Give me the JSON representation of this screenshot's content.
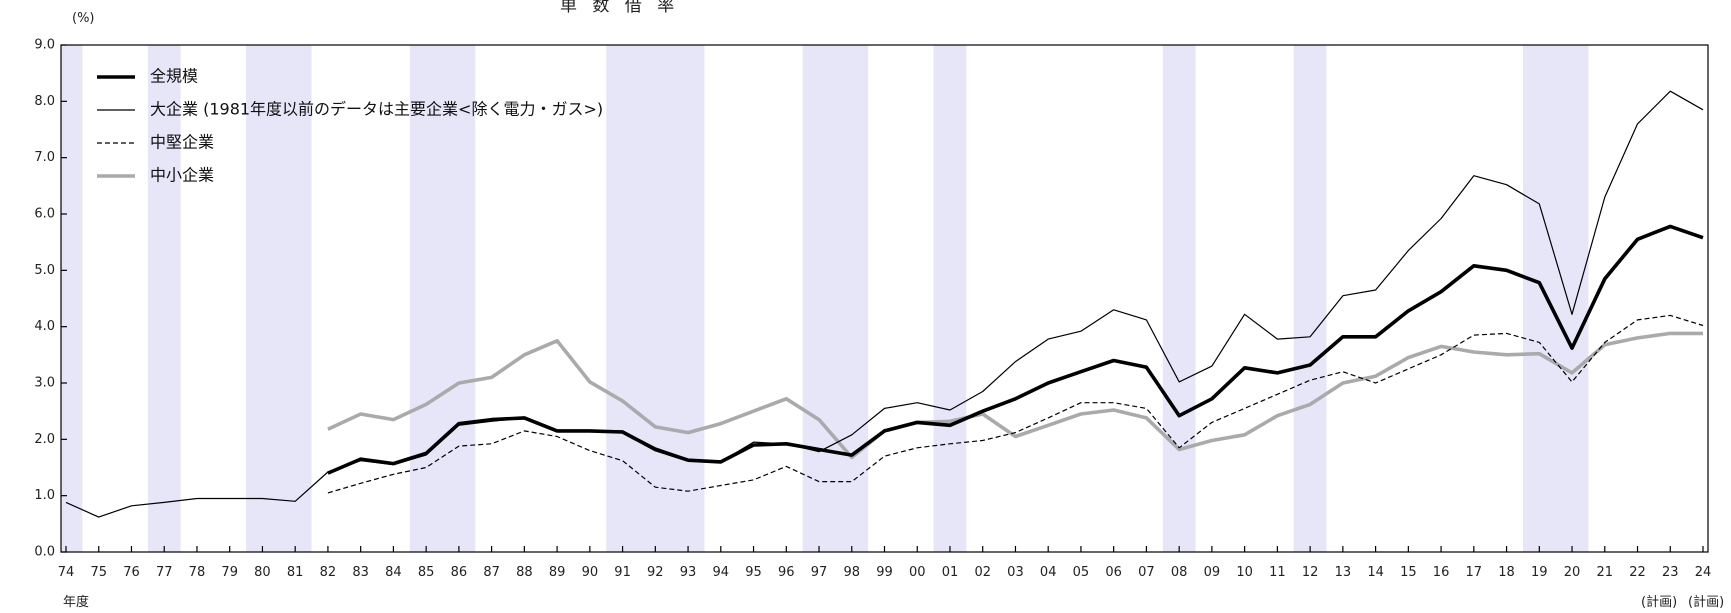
{
  "chart_data": {
    "type": "line",
    "title": "単 数 借 率",
    "unit": "(%)",
    "xlabel": "年度",
    "ylim": [
      0,
      9
    ],
    "yticks": [
      "0.0",
      "1.0",
      "2.0",
      "3.0",
      "4.0",
      "5.0",
      "6.0",
      "7.0",
      "8.0",
      "9.0"
    ],
    "categories": [
      "74",
      "75",
      "76",
      "77",
      "78",
      "79",
      "80",
      "81",
      "82",
      "83",
      "84",
      "85",
      "86",
      "87",
      "88",
      "89",
      "90",
      "91",
      "92",
      "93",
      "94",
      "95",
      "96",
      "97",
      "98",
      "99",
      "00",
      "01",
      "02",
      "03",
      "04",
      "05",
      "06",
      "07",
      "08",
      "09",
      "10",
      "11",
      "12",
      "13",
      "14",
      "15",
      "16",
      "17",
      "18",
      "19",
      "20",
      "21",
      "22",
      "23",
      "24"
    ],
    "plan_labels": [
      "(計画)",
      "(計画)"
    ],
    "recession_bands": [
      [
        "74",
        "74"
      ],
      [
        "77",
        "77"
      ],
      [
        "80",
        "81"
      ],
      [
        "85",
        "86"
      ],
      [
        "91",
        "93"
      ],
      [
        "97",
        "98"
      ],
      [
        "01",
        "01"
      ],
      [
        "08",
        "08"
      ],
      [
        "12",
        "12"
      ],
      [
        "19",
        "20"
      ]
    ],
    "legend": {
      "placement": "top-left"
    },
    "grid": false,
    "series": [
      {
        "name": "全規模",
        "style": "thick-black",
        "color": "#000000",
        "values": [
          null,
          null,
          null,
          null,
          null,
          null,
          null,
          null,
          1.4,
          1.65,
          1.57,
          1.75,
          2.28,
          2.35,
          2.38,
          2.15,
          2.15,
          2.13,
          1.82,
          1.63,
          1.6,
          1.9,
          1.92,
          1.82,
          1.72,
          2.15,
          2.3,
          2.25,
          2.5,
          2.72,
          3.0,
          3.2,
          3.4,
          3.28,
          2.42,
          2.72,
          3.27,
          3.18,
          3.32,
          3.82,
          3.82,
          4.28,
          4.62,
          5.08,
          5.0,
          4.78,
          3.62,
          4.85,
          5.55,
          5.78,
          5.58
        ]
      },
      {
        "name": "大企業 (1981年度以前のデータは主要企業<除く電力・ガス>)",
        "style": "thin-black",
        "color": "#000000",
        "values": [
          0.88,
          0.62,
          0.82,
          0.88,
          0.95,
          0.95,
          0.95,
          0.9,
          1.42,
          1.62,
          1.55,
          1.72,
          2.25,
          2.32,
          2.38,
          2.15,
          2.15,
          2.15,
          1.85,
          1.65,
          1.6,
          1.95,
          1.92,
          1.78,
          2.08,
          2.55,
          2.65,
          2.52,
          2.85,
          3.38,
          3.78,
          3.92,
          4.3,
          4.12,
          3.02,
          3.3,
          4.22,
          3.78,
          3.82,
          4.55,
          4.65,
          5.35,
          5.92,
          6.68,
          6.52,
          6.18,
          4.22,
          6.3,
          7.6,
          8.18,
          7.85
        ]
      },
      {
        "name": "中堅企業",
        "style": "dashed",
        "color": "#000000",
        "values": [
          null,
          null,
          null,
          null,
          null,
          null,
          null,
          null,
          1.05,
          1.22,
          1.38,
          1.5,
          1.88,
          1.92,
          2.15,
          2.05,
          1.8,
          1.62,
          1.15,
          1.08,
          1.18,
          1.28,
          1.52,
          1.25,
          1.25,
          1.7,
          1.85,
          1.92,
          1.98,
          2.12,
          2.38,
          2.65,
          2.65,
          2.55,
          1.85,
          2.3,
          2.55,
          2.8,
          3.05,
          3.2,
          3.0,
          3.25,
          3.5,
          3.85,
          3.88,
          3.72,
          3.02,
          3.72,
          4.12,
          4.2,
          4.02
        ]
      },
      {
        "name": "中小企業",
        "style": "thick-gray",
        "color": "#aaaaaa",
        "values": [
          null,
          null,
          null,
          null,
          null,
          null,
          null,
          null,
          2.18,
          2.45,
          2.35,
          2.62,
          3.0,
          3.1,
          3.5,
          3.75,
          3.02,
          2.68,
          2.22,
          2.12,
          2.28,
          2.5,
          2.72,
          2.35,
          1.68,
          2.15,
          2.3,
          2.32,
          2.45,
          2.05,
          2.25,
          2.45,
          2.52,
          2.38,
          1.82,
          1.98,
          2.08,
          2.42,
          2.62,
          3.0,
          3.12,
          3.45,
          3.65,
          3.55,
          3.5,
          3.52,
          3.18,
          3.68,
          3.8,
          3.88,
          3.88
        ]
      }
    ]
  }
}
